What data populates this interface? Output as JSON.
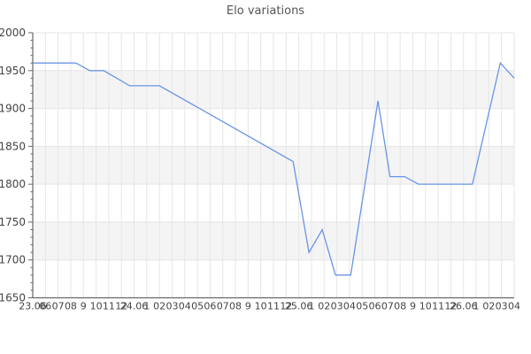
{
  "title": "Elo variations",
  "colors": {
    "line": "#6a94e6",
    "band_gray": "#f4f4f4",
    "band_white": "#ffffff",
    "grid": "#e6e6e6",
    "axis": "#666666",
    "tick_label": "#444444",
    "title_color": "#555555"
  },
  "chart_data": {
    "type": "line",
    "title": "Elo variations",
    "legend": "none",
    "grid": "on",
    "y_axis": {
      "min": 1650,
      "max": 2000,
      "major_step": 50,
      "minor_step": 10,
      "tick_labels": [
        "2000",
        "1950",
        "1900",
        "1850",
        "1800",
        "1750",
        "1700",
        "1650"
      ],
      "gray_bands": [
        [
          1950,
          1900
        ],
        [
          1850,
          1800
        ],
        [
          1750,
          1700
        ]
      ]
    },
    "x_axis": {
      "tick_labels": [
        "23.06",
        "06",
        "07",
        "08",
        "9",
        "10",
        "11",
        "12",
        "24.06",
        "1",
        "02",
        "03",
        "04",
        "05",
        "06",
        "07",
        "08",
        "9",
        "10",
        "11",
        "12",
        "25.06",
        "1",
        "02",
        "03",
        "04",
        "05",
        "06",
        "07",
        "08",
        "9",
        "10",
        "11",
        "12",
        "26.06",
        "1",
        "02",
        "03",
        "04"
      ]
    },
    "points": [
      {
        "t": 0.0,
        "elo": 1960
      },
      {
        "t": 3.4,
        "elo": 1960
      },
      {
        "t": 4.5,
        "elo": 1950
      },
      {
        "t": 5.6,
        "elo": 1950
      },
      {
        "t": 7.65,
        "elo": 1930
      },
      {
        "t": 10.0,
        "elo": 1930
      },
      {
        "t": 20.55,
        "elo": 1830
      },
      {
        "t": 21.8,
        "elo": 1710
      },
      {
        "t": 22.85,
        "elo": 1740
      },
      {
        "t": 23.9,
        "elo": 1680
      },
      {
        "t": 25.1,
        "elo": 1680
      },
      {
        "t": 27.25,
        "elo": 1910
      },
      {
        "t": 28.2,
        "elo": 1810
      },
      {
        "t": 29.35,
        "elo": 1810
      },
      {
        "t": 30.45,
        "elo": 1800
      },
      {
        "t": 34.7,
        "elo": 1800
      },
      {
        "t": 36.9,
        "elo": 1960
      },
      {
        "t": 38.0,
        "elo": 1940
      }
    ]
  }
}
